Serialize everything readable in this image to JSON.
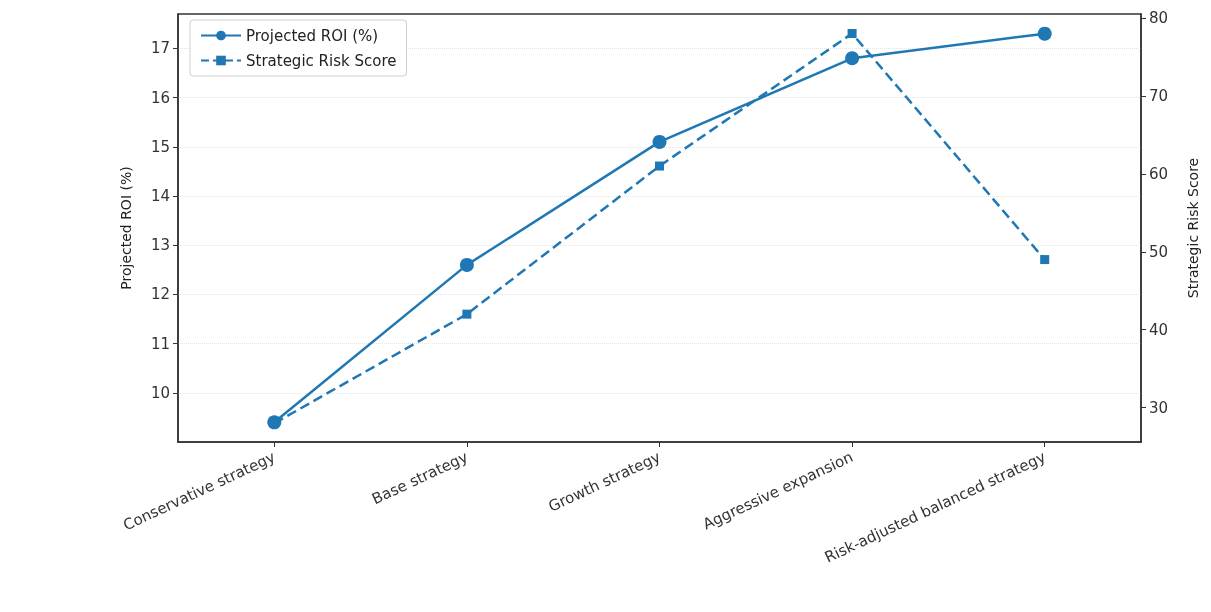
{
  "chart_data": {
    "type": "line",
    "xlabel": null,
    "ylabel": "Projected ROI (%)",
    "y2label": "Strategic Risk Score",
    "categories": [
      "Conservative strategy",
      "Base strategy",
      "Growth strategy",
      "Aggressive expansion",
      "Risk-adjusted balanced strategy"
    ],
    "series": [
      {
        "name": "Projected ROI (%)",
        "color": "#1f77b4",
        "values": [
          9.4,
          12.6,
          15.1,
          16.8,
          17.3
        ],
        "marker": "circle",
        "line_style": "solid"
      },
      {
        "name": "Strategic Risk Score",
        "color": "#1f77b4",
        "values": [
          28,
          42,
          61,
          78,
          49
        ],
        "marker": "square",
        "line_style": "dashed",
        "axis": "y2"
      }
    ],
    "ylim": [
      9.0,
      17.7
    ],
    "yticks": [
      10,
      11,
      12,
      13,
      14,
      15,
      16,
      17
    ],
    "y2lim": [
      25.6,
      80.5
    ],
    "y2ticks": [
      30,
      40,
      50,
      60,
      70,
      80
    ],
    "grid": "y",
    "legend": "top left"
  }
}
